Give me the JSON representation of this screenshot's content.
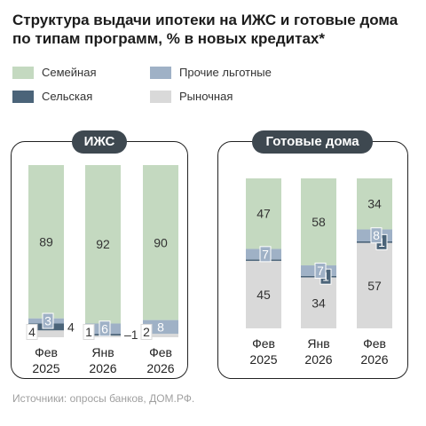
{
  "title": "Структура выдачи ипотеки на ИЖС и готовые дома по типам программ, % в новых кредитах*",
  "legend": [
    {
      "label": "Семейная",
      "color": "#c4d9c0"
    },
    {
      "label": "Прочие льготные",
      "color": "#9fb1c6"
    },
    {
      "label": "Сельская",
      "color": "#4b6479"
    },
    {
      "label": "Рыночная",
      "color": "#d9d9d9"
    }
  ],
  "source": "Источники: опросы банков, ДОМ.РФ.",
  "chart_data": [
    {
      "type": "bar",
      "stacked": true,
      "title": "ИЖС",
      "categories": [
        "Фев 2025",
        "Янв 2026",
        "Фев 2026"
      ],
      "series": [
        {
          "name": "Рыночная",
          "values": [
            4,
            1,
            2
          ],
          "labels": [
            "4",
            "1",
            "2"
          ]
        },
        {
          "name": "Сельская",
          "values": [
            4,
            1,
            0
          ],
          "labels": [
            "4",
            "1",
            ""
          ]
        },
        {
          "name": "Прочие льготные",
          "values": [
            3,
            6,
            8
          ],
          "labels": [
            "3",
            "6",
            "8"
          ]
        },
        {
          "name": "Семейная",
          "values": [
            89,
            92,
            90
          ],
          "labels": [
            "89",
            "92",
            "90"
          ]
        }
      ],
      "ylim": [
        0,
        100
      ]
    },
    {
      "type": "bar",
      "stacked": true,
      "title": "Готовые дома",
      "categories": [
        "Фев 2025",
        "Янв 2026",
        "Фев 2026"
      ],
      "series": [
        {
          "name": "Рыночная",
          "values": [
            45,
            34,
            57
          ],
          "labels": [
            "45",
            "34",
            "57"
          ]
        },
        {
          "name": "Сельская",
          "values": [
            1,
            1,
            1
          ],
          "labels": [
            "",
            "1",
            "1"
          ]
        },
        {
          "name": "Прочие льготные",
          "values": [
            7,
            7,
            8
          ],
          "labels": [
            "7",
            "7",
            "8"
          ]
        },
        {
          "name": "Семейная",
          "values": [
            47,
            58,
            34
          ],
          "labels": [
            "47",
            "58",
            "34"
          ]
        }
      ],
      "ylim": [
        0,
        100
      ]
    }
  ]
}
